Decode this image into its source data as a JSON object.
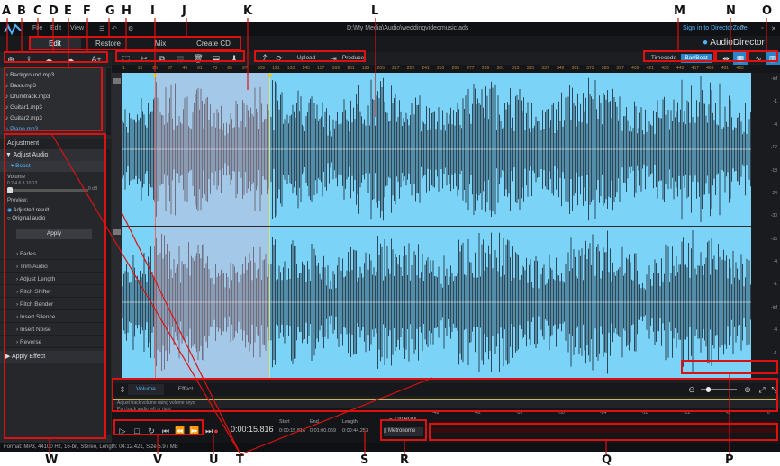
{
  "callouts": {
    "A": "A",
    "B": "B",
    "C": "C",
    "D": "D",
    "E": "E",
    "F": "F",
    "G": "G",
    "H": "H",
    "I": "I",
    "J": "J",
    "K": "K",
    "L": "L",
    "M": "M",
    "N": "N",
    "O": "O",
    "P": "P",
    "Q": "Q",
    "R": "R",
    "S": "S",
    "T": "T",
    "U": "U",
    "V": "V",
    "W": "W"
  },
  "menubar": {
    "items": [
      "File",
      "Edit",
      "View"
    ],
    "path": "D:\\My Media\\Audio\\weddingvideomusic.ads",
    "signin": "Sign in to DirectorZone",
    "help": "?",
    "app_name": "AudioDirector"
  },
  "modes": [
    "Edit",
    "Restore",
    "Mix",
    "Create CD"
  ],
  "toolbar": {
    "upload": "Upload",
    "produce": "Produce",
    "timecode": "Timecode",
    "barbeat": "Bar/Beat"
  },
  "library_add_text": "A+",
  "files": [
    "Background.mp3",
    "Bass.mp3",
    "Drumtrack.mp3",
    "Guitar1.mp3",
    "Guitar2.mp3",
    "Piano.mp3"
  ],
  "adjustment": {
    "header": "Adjustment",
    "adjust_audio": "Adjust Audio",
    "boost": "Boost",
    "volume": "Volume",
    "scale": "0  2  4  6  8  10  12",
    "value": "0 dB",
    "preview": "Preview:",
    "adjusted": "Adjusted result",
    "original": "Original audio",
    "apply": "Apply",
    "items": [
      "Fades",
      "Trim Audio",
      "Adjust Length",
      "Pitch Shifter",
      "Pitch Bender",
      "Insert Silence",
      "Insert Noise",
      "Reverse"
    ],
    "apply_effect": "Apply Effect"
  },
  "ruler_ticks": [
    "1",
    "13",
    "25",
    "37",
    "49",
    "61",
    "73",
    "85",
    "97",
    "109",
    "121",
    "133",
    "145",
    "157",
    "169",
    "181",
    "193",
    "205",
    "217",
    "229",
    "241",
    "253",
    "265",
    "277",
    "289",
    "301",
    "313",
    "325",
    "337",
    "349",
    "361",
    "373",
    "385",
    "397",
    "409",
    "421",
    "433",
    "445",
    "457",
    "469",
    "481",
    "493"
  ],
  "db_labels": [
    "-inf",
    "-1",
    "-4",
    "-12",
    "-18",
    "-24",
    "-30",
    "-36",
    "-4",
    "-1",
    "-inf",
    "-4",
    "-1"
  ],
  "envelope": {
    "tab_volume": "Volume",
    "tab_effect": "Effect",
    "line1": "Adjust track volume using volume keys",
    "line2": "Pan track audio left or right"
  },
  "transport": {
    "time": "0:00:15.816",
    "start_label": "Start",
    "end_label": "End",
    "length_label": "Length",
    "start": "0:00:15.816",
    "end": "0:01:00.069",
    "length": "0:00:44.253",
    "bpm_value": "120",
    "bpm_label": "BPM",
    "metronome": "Metronome"
  },
  "meter_labels": [
    "-48",
    "-42",
    "-36",
    "-30",
    "-24",
    "-18",
    "-12",
    "-6",
    "0"
  ],
  "status": "Format: MP3, 44100 Hz, 16-bit, Stereo, Length: 04:12.421, Size 5.97 MB",
  "colors": {
    "accent": "#2a86c9",
    "waveform_bg": "#7bd3f7",
    "callout_red": "#dd1111",
    "selection": "#f0b8cc"
  }
}
